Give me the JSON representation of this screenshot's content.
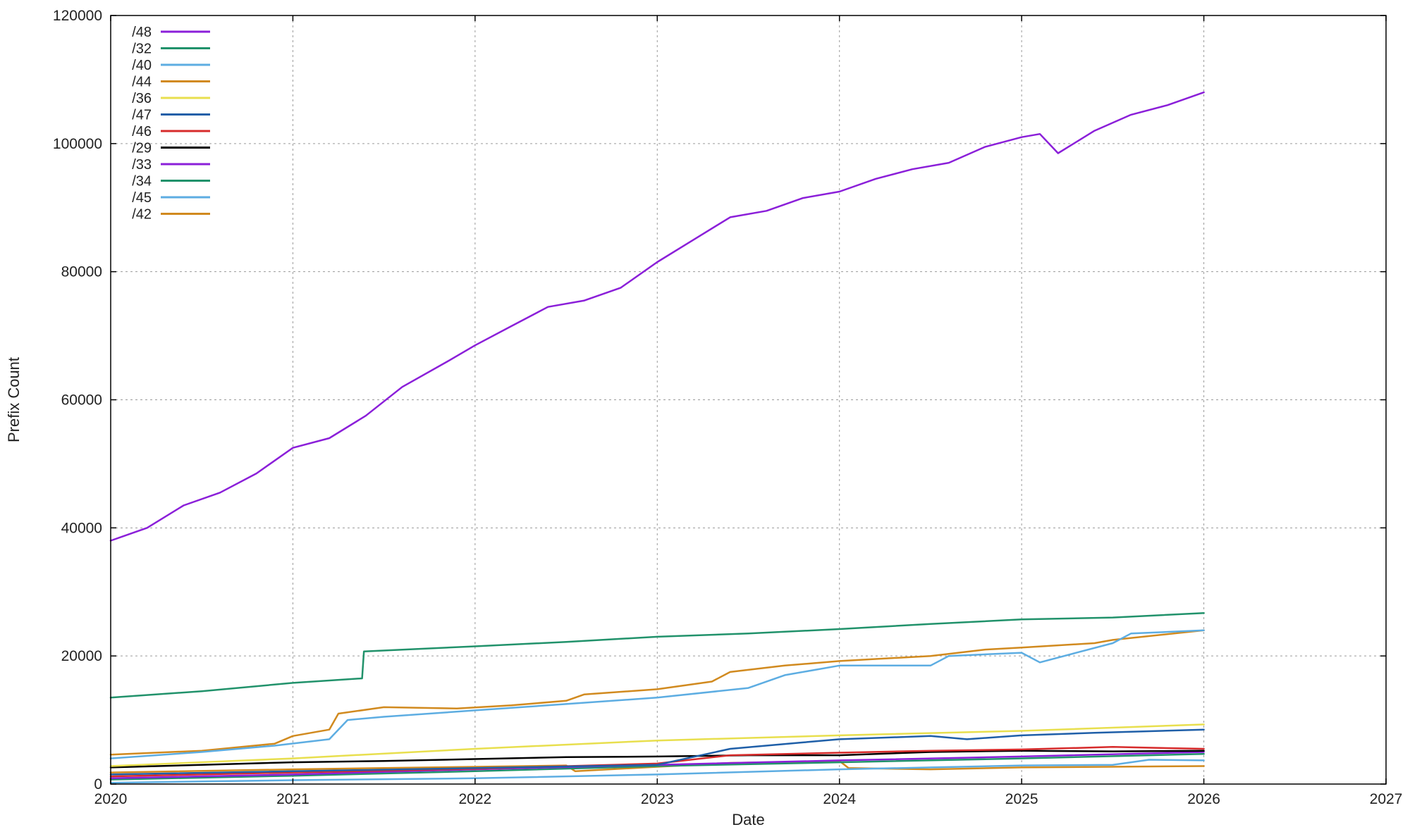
{
  "chart_data": {
    "type": "line",
    "title": "",
    "xlabel": "Date",
    "ylabel": "Prefix Count",
    "xlim": [
      2020,
      2027
    ],
    "ylim": [
      0,
      120000
    ],
    "x_ticks": [
      "2020",
      "2021",
      "2022",
      "2023",
      "2024",
      "2025",
      "2026",
      "2027"
    ],
    "y_ticks": [
      "0",
      "20000",
      "40000",
      "60000",
      "80000",
      "100000",
      "120000"
    ],
    "grid": true,
    "legend_position": "top-left",
    "series": [
      {
        "name": "/48",
        "color": "#8B1FD9",
        "x": [
          2020.0,
          2020.2,
          2020.4,
          2020.6,
          2020.8,
          2021.0,
          2021.2,
          2021.4,
          2021.6,
          2021.85,
          2022.0,
          2022.2,
          2022.4,
          2022.6,
          2022.8,
          2023.0,
          2023.2,
          2023.4,
          2023.6,
          2023.8,
          2024.0,
          2024.2,
          2024.4,
          2024.6,
          2024.8,
          2025.0,
          2025.1,
          2025.2,
          2025.4,
          2025.6,
          2025.8,
          2026.0
        ],
        "y": [
          38000,
          40000,
          43500,
          45500,
          48500,
          52500,
          54000,
          57500,
          62000,
          66000,
          68500,
          71500,
          74500,
          75500,
          77500,
          81500,
          85000,
          88500,
          89500,
          91500,
          92500,
          94500,
          96000,
          97000,
          99500,
          101000,
          101500,
          98500,
          102000,
          104500,
          106000,
          108000
        ]
      },
      {
        "name": "/32",
        "color": "#21926B",
        "x": [
          2020.0,
          2020.5,
          2021.0,
          2021.38,
          2021.39,
          2022.0,
          2022.5,
          2023.0,
          2023.5,
          2024.0,
          2024.5,
          2025.0,
          2025.5,
          2026.0
        ],
        "y": [
          13500,
          14500,
          15800,
          16500,
          20700,
          21500,
          22200,
          23000,
          23500,
          24200,
          25000,
          25700,
          26000,
          26700
        ]
      },
      {
        "name": "/40",
        "color": "#5DADE2",
        "x": [
          2020.0,
          2020.5,
          2020.9,
          2021.2,
          2021.3,
          2021.5,
          2022.0,
          2022.5,
          2023.0,
          2023.5,
          2023.7,
          2024.0,
          2024.5,
          2024.6,
          2025.0,
          2025.1,
          2025.3,
          2025.5,
          2025.6,
          2026.0
        ],
        "y": [
          4000,
          5000,
          6000,
          7000,
          10000,
          10500,
          11500,
          12500,
          13500,
          15000,
          17000,
          18500,
          18500,
          20000,
          20500,
          19000,
          20500,
          22000,
          23500,
          24000
        ]
      },
      {
        "name": "/44",
        "color": "#D18A1F",
        "x": [
          2020.0,
          2020.5,
          2020.9,
          2021.0,
          2021.2,
          2021.25,
          2021.5,
          2021.9,
          2022.2,
          2022.5,
          2022.6,
          2023.0,
          2023.3,
          2023.4,
          2023.7,
          2024.0,
          2024.5,
          2024.8,
          2025.0,
          2025.4,
          2025.5,
          2026.0
        ],
        "y": [
          4600,
          5200,
          6300,
          7500,
          8500,
          11000,
          12000,
          11800,
          12300,
          13000,
          14000,
          14800,
          16000,
          17500,
          18500,
          19200,
          20000,
          21000,
          21300,
          22000,
          22500,
          24000
        ]
      },
      {
        "name": "/36",
        "color": "#E8DF4E",
        "x": [
          2020.0,
          2021.0,
          2022.0,
          2023.0,
          2024.0,
          2025.0,
          2026.0
        ],
        "y": [
          2800,
          4000,
          5500,
          6800,
          7600,
          8300,
          9300
        ]
      },
      {
        "name": "/47",
        "color": "#1F5FA8",
        "x": [
          2020.0,
          2021.0,
          2022.0,
          2023.0,
          2023.4,
          2023.8,
          2024.0,
          2024.5,
          2024.7,
          2025.0,
          2025.4,
          2026.0
        ],
        "y": [
          1500,
          2000,
          2500,
          3000,
          5500,
          6500,
          7000,
          7500,
          7000,
          7600,
          8000,
          8500
        ]
      },
      {
        "name": "/46",
        "color": "#D72B2B",
        "x": [
          2020.0,
          2021.0,
          2022.0,
          2023.0,
          2023.4,
          2024.0,
          2024.5,
          2025.0,
          2025.5,
          2026.0
        ],
        "y": [
          1200,
          1800,
          2400,
          3200,
          4500,
          4900,
          5200,
          5400,
          5800,
          5500
        ]
      },
      {
        "name": "/29",
        "color": "#000000",
        "x": [
          2020.0,
          2020.5,
          2021.0,
          2021.5,
          2022.0,
          2022.5,
          2023.0,
          2023.5,
          2024.0,
          2024.5,
          2025.0,
          2025.5,
          2026.0
        ],
        "y": [
          2600,
          3000,
          3400,
          3600,
          3900,
          4200,
          4300,
          4500,
          4500,
          5000,
          5200,
          5100,
          5200
        ]
      },
      {
        "name": "/33",
        "color": "#8B1FD9",
        "x": [
          2020.0,
          2021.0,
          2022.0,
          2023.0,
          2024.0,
          2025.0,
          2026.0
        ],
        "y": [
          900,
          1500,
          2300,
          3000,
          3700,
          4300,
          5000
        ]
      },
      {
        "name": "/34",
        "color": "#21926B",
        "x": [
          2020.0,
          2021.0,
          2022.0,
          2023.0,
          2024.0,
          2025.0,
          2026.0
        ],
        "y": [
          700,
          1300,
          2000,
          2800,
          3400,
          4000,
          4700
        ]
      },
      {
        "name": "/45",
        "color": "#5DADE2",
        "x": [
          2020.0,
          2021.0,
          2022.0,
          2023.0,
          2024.0,
          2024.5,
          2025.0,
          2025.5,
          2025.7,
          2026.0
        ],
        "y": [
          200,
          600,
          900,
          1500,
          2300,
          2600,
          2900,
          3000,
          3800,
          3700
        ]
      },
      {
        "name": "/42",
        "color": "#D18A1F",
        "x": [
          2020.0,
          2021.0,
          2022.0,
          2022.5,
          2022.55,
          2023.0,
          2023.4,
          2024.0,
          2024.05,
          2024.5,
          2025.0,
          2026.0
        ],
        "y": [
          1800,
          2300,
          2700,
          2900,
          2000,
          2700,
          3300,
          3600,
          2500,
          2300,
          2600,
          2800
        ]
      }
    ]
  }
}
